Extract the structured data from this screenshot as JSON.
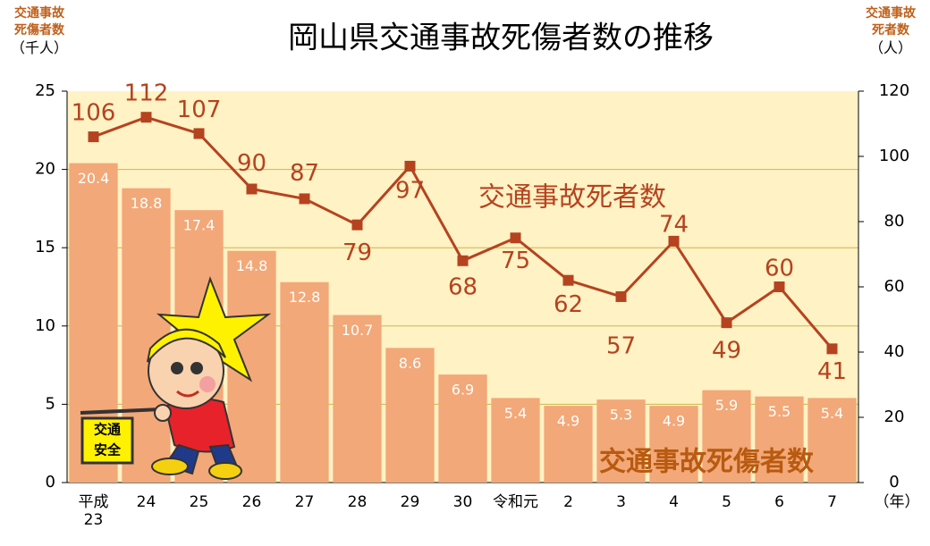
{
  "chart_data": {
    "type": "bar-line",
    "title": "岡山県交通事故死傷者数の推移",
    "y_label": "交通事故\n死傷者数",
    "y_unit": "（千人）",
    "y2_label": "交通事故\n死者数",
    "y2_unit": "（人）",
    "x_unit": "（年）",
    "categories": [
      "平成\n23",
      "24",
      "25",
      "26",
      "27",
      "28",
      "29",
      "30",
      "令和元",
      "2",
      "3",
      "4",
      "5",
      "6",
      "7"
    ],
    "series": [
      {
        "name": "交通事故死傷者数",
        "type": "bar",
        "color": "#f2a878",
        "values": [
          20.4,
          18.8,
          17.4,
          14.8,
          12.8,
          10.7,
          8.6,
          6.9,
          5.4,
          4.9,
          5.3,
          4.9,
          5.9,
          5.5,
          5.4
        ]
      },
      {
        "name": "交通事故死者数",
        "type": "line",
        "axis": "y2",
        "color": "#b5431f",
        "values": [
          106,
          112,
          107,
          90,
          87,
          79,
          97,
          68,
          75,
          62,
          57,
          74,
          49,
          60,
          41
        ]
      }
    ],
    "ylim": [
      0,
      25
    ],
    "yticks": [
      0,
      5,
      10,
      15,
      20,
      25
    ],
    "y2lim": [
      0,
      120
    ],
    "y2ticks": [
      0,
      20,
      40,
      60,
      80,
      100,
      120
    ],
    "grid": true
  },
  "mascot_sign": [
    "交通",
    "安全"
  ]
}
